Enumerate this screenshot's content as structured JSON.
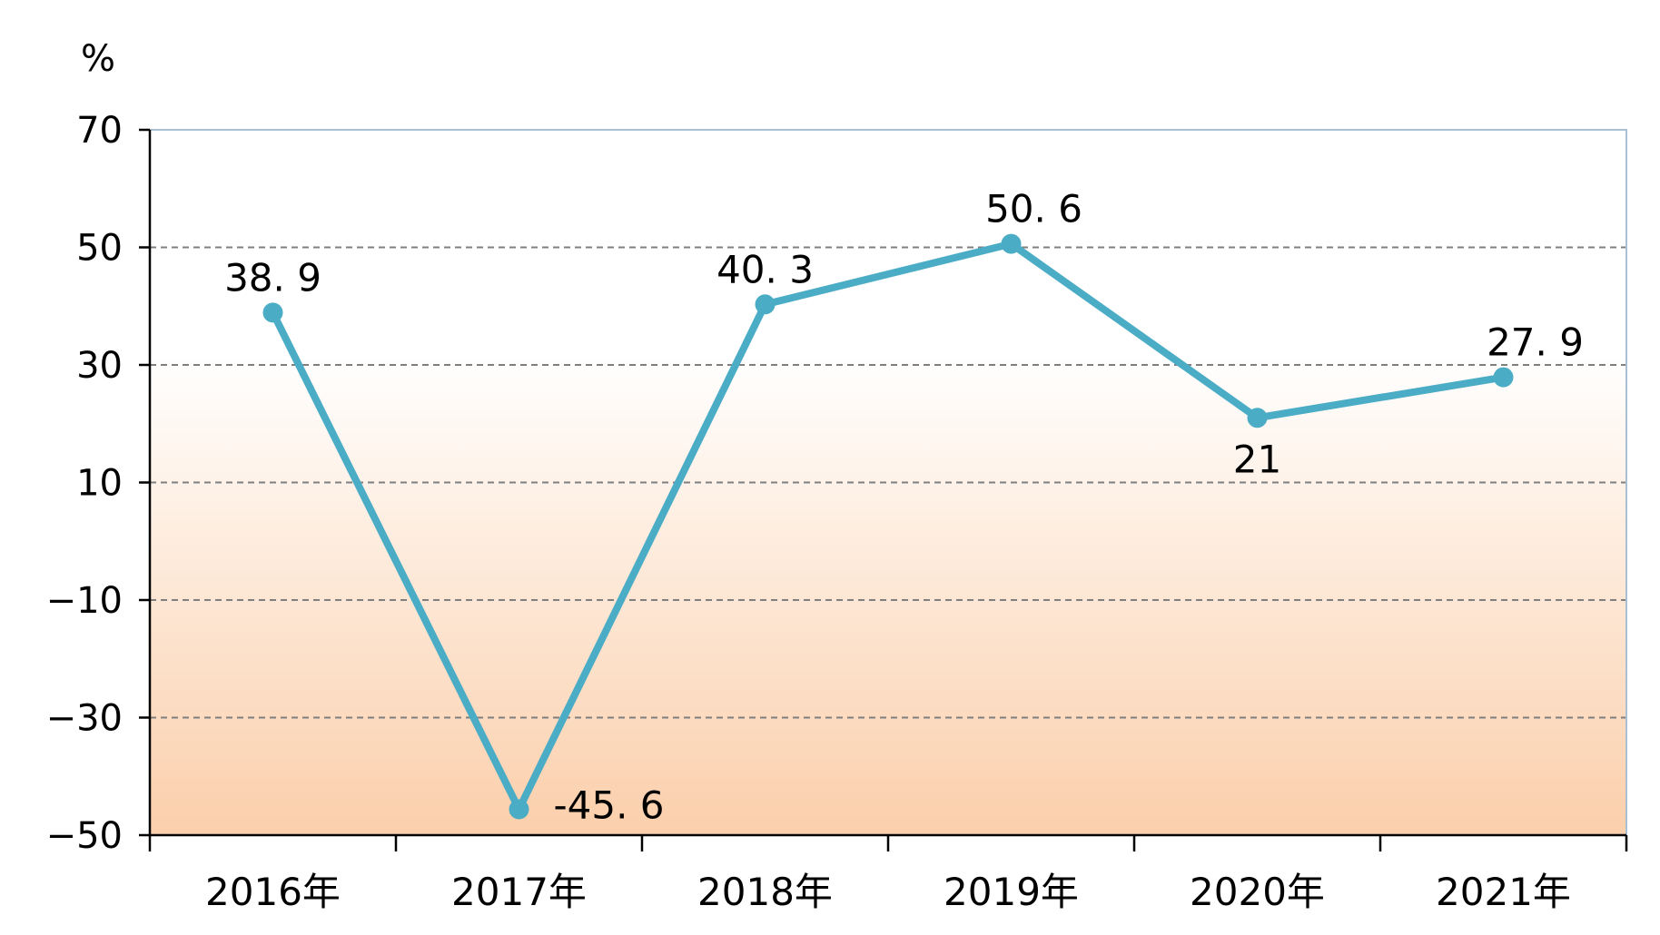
{
  "chart_data": {
    "type": "line",
    "unit_label": "%",
    "categories": [
      "2016年",
      "2017年",
      "2018年",
      "2019年",
      "2020年",
      "2021年"
    ],
    "series": [
      {
        "values": [
          38.9,
          -45.6,
          40.3,
          50.6,
          21,
          27.9
        ],
        "data_labels": [
          "38. 9",
          "-45. 6",
          "40. 3",
          "50. 6",
          "21",
          "27. 9"
        ],
        "color": "#4bacc6"
      }
    ],
    "y_ticks": [
      70,
      50,
      30,
      10,
      -10,
      -30,
      -50
    ],
    "y_tick_labels": [
      "70",
      "50",
      "30",
      "10",
      "−10",
      "−30",
      "−50"
    ],
    "ylim": [
      -50,
      70
    ],
    "grid": true,
    "grid_style": "dashed",
    "background_gradient": [
      "#ffffff",
      "#fbcfab"
    ]
  }
}
